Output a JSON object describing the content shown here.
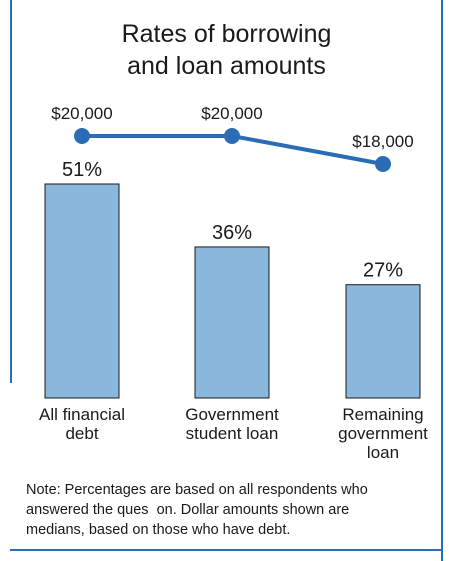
{
  "title_line1": "Rates of borrowing",
  "title_line2": "and loan amounts",
  "note": {
    "line1": "Note: Percentages are based on all respondents who",
    "line2": "answered the ques  on. Dollar amounts shown are",
    "line3": "medians, based on those who have debt."
  },
  "colors": {
    "frame": "#2a6db5",
    "bar_fill": "#8ab8dd",
    "bar_stroke": "#1a1a1a",
    "line": "#2a6db5"
  },
  "chart_data": {
    "type": "bar",
    "categories": [
      [
        "All financial",
        "debt"
      ],
      [
        "Government",
        "student loan"
      ],
      [
        "Remaining",
        "government",
        "loan"
      ]
    ],
    "series": [
      {
        "values": [
          51,
          36,
          27
        ],
        "labels": [
          "51%",
          "36%",
          "27%"
        ],
        "mark": "bar"
      },
      {
        "values": [
          20000,
          20000,
          18000
        ],
        "labels": [
          "$20,000",
          "$20,000",
          "$18,000"
        ],
        "mark": "line"
      }
    ]
  }
}
